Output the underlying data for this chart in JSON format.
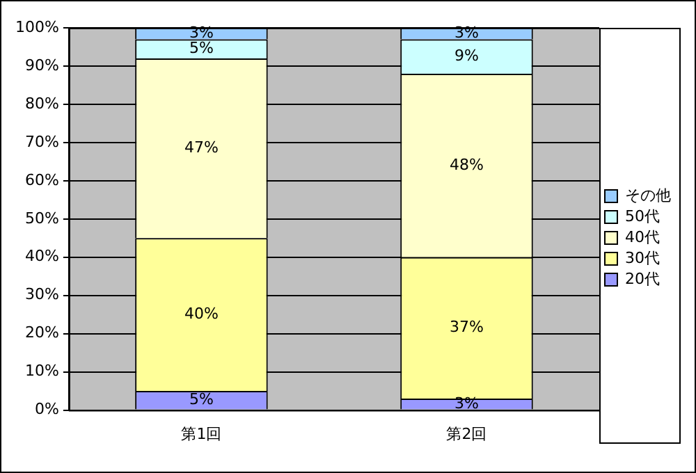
{
  "chart_data": {
    "type": "bar",
    "stacked": true,
    "categories": [
      "第1回",
      "第2回"
    ],
    "series": [
      {
        "name": "20代",
        "color": "#9999ff",
        "values": [
          5,
          3
        ],
        "value_labels": [
          "5%",
          "3%"
        ]
      },
      {
        "name": "30代",
        "color": "#ffff99",
        "values": [
          40,
          37
        ],
        "value_labels": [
          "40%",
          "37%"
        ]
      },
      {
        "name": "40代",
        "color": "#ffffcc",
        "values": [
          47,
          48
        ],
        "value_labels": [
          "47%",
          "48%"
        ]
      },
      {
        "name": "50代",
        "color": "#ccffff",
        "values": [
          5,
          9
        ],
        "value_labels": [
          "5%",
          "9%"
        ]
      },
      {
        "name": "その他",
        "color": "#99ccff",
        "values": [
          3,
          3
        ],
        "value_labels": [
          "3%",
          "3%"
        ]
      }
    ],
    "ylim": [
      0,
      100
    ],
    "yticks": [
      {
        "value": 0,
        "label": "0%"
      },
      {
        "value": 10,
        "label": "10%"
      },
      {
        "value": 20,
        "label": "20%"
      },
      {
        "value": 30,
        "label": "30%"
      },
      {
        "value": 40,
        "label": "40%"
      },
      {
        "value": 50,
        "label": "50%"
      },
      {
        "value": 60,
        "label": "60%"
      },
      {
        "value": 70,
        "label": "70%"
      },
      {
        "value": 80,
        "label": "80%"
      },
      {
        "value": 90,
        "label": "90%"
      },
      {
        "value": 100,
        "label": "100%"
      }
    ],
    "grid": "y",
    "legend": "right"
  }
}
